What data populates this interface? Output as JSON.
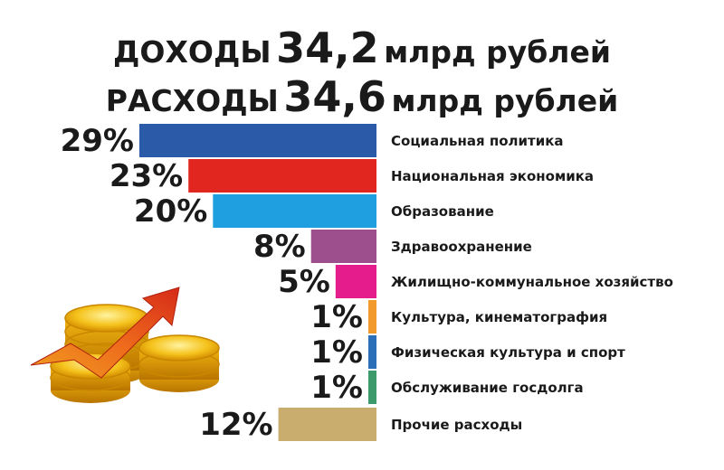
{
  "header": {
    "line1": {
      "word": "ДОХОДЫ",
      "value": "34,2",
      "unit": "млрд рублей"
    },
    "line2": {
      "word": "РАСХОДЫ",
      "value": "34,6",
      "unit": "млрд рублей"
    }
  },
  "chart_data": {
    "type": "bar",
    "orientation": "horizontal",
    "categories": [
      "Социальная политика",
      "Национальная экономика",
      "Образование",
      "Здравоохранение",
      "Жилищно-коммунальное хозяйство",
      "Культура, кинематография",
      "Физическая культура и спорт",
      "Обслуживание госдолга",
      "Прочие расходы"
    ],
    "values": [
      29,
      23,
      20,
      8,
      5,
      1,
      1,
      1,
      12
    ],
    "value_labels": [
      "29%",
      "23%",
      "20%",
      "8%",
      "5%",
      "1%",
      "1%",
      "1%",
      "12%"
    ],
    "unit": "%",
    "colors": [
      "#2b5aa8",
      "#e0261e",
      "#1f9ee0",
      "#9c4f8c",
      "#e51c8c",
      "#f39a2c",
      "#2a6fb7",
      "#3d9a6a",
      "#c9ad6e"
    ],
    "title": "",
    "xlabel": "",
    "ylabel": "",
    "grid": false,
    "legend": "none"
  },
  "decoration": {
    "icon": "coins-growth-arrow-icon"
  }
}
